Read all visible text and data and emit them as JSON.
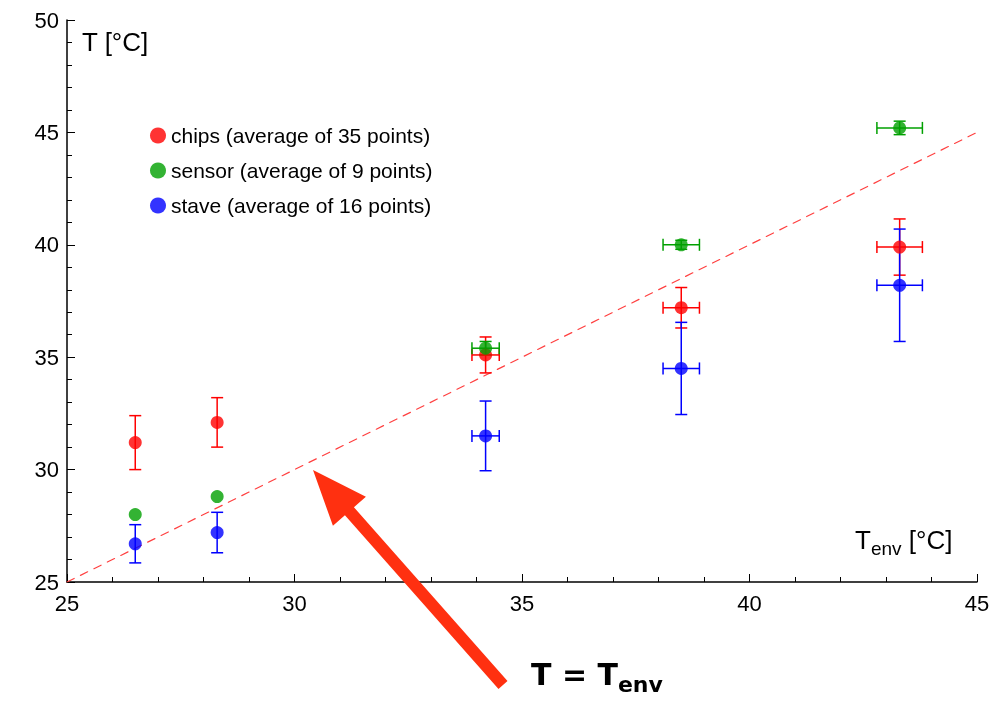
{
  "chart_data": {
    "type": "scatter",
    "xlabel": "T$_{env}$ [°C]",
    "ylabel": "T [°C]",
    "x": [
      26.5,
      28.3,
      34.2,
      38.5,
      43.3
    ],
    "series": [
      {
        "name": "chips (average of 35 points)",
        "color": "#ff0000",
        "values": [
          31.2,
          32.1,
          35.1,
          37.2,
          39.9
        ],
        "errors": [
          1.2,
          1.1,
          0.8,
          0.9,
          1.25
        ],
        "xerrors": [
          null,
          null,
          0.3,
          0.4,
          0.5
        ]
      },
      {
        "name": "sensor (average of 9 points)",
        "color": "#00a000",
        "values": [
          28.0,
          28.8,
          35.4,
          40.0,
          45.2
        ],
        "errors": [
          null,
          null,
          0.3,
          0.2,
          0.3
        ],
        "xerrors": [
          null,
          null,
          0.3,
          0.4,
          0.5
        ]
      },
      {
        "name": "stave (average of 16 points)",
        "color": "#0000ff",
        "values": [
          26.7,
          27.2,
          31.5,
          34.5,
          38.2
        ],
        "errors": [
          0.85,
          0.9,
          1.55,
          2.05,
          2.5
        ],
        "xerrors": [
          null,
          null,
          0.3,
          0.4,
          0.5
        ]
      },
      {
        "type": "line",
        "x": [
          25,
          45
        ],
        "values": [
          25,
          45
        ],
        "color": "#ff4040",
        "line_style": "dashed",
        "marker": "none"
      }
    ],
    "xlim": [
      25,
      45
    ],
    "xticks": [
      25,
      30,
      35,
      40,
      45
    ],
    "ylim": [
      25,
      50
    ],
    "yticks": [
      25,
      30,
      35,
      40,
      45,
      50
    ],
    "grid": false,
    "legend": "top left",
    "marker": "circle",
    "annotations": [
      "T = T$_{env}$"
    ]
  }
}
